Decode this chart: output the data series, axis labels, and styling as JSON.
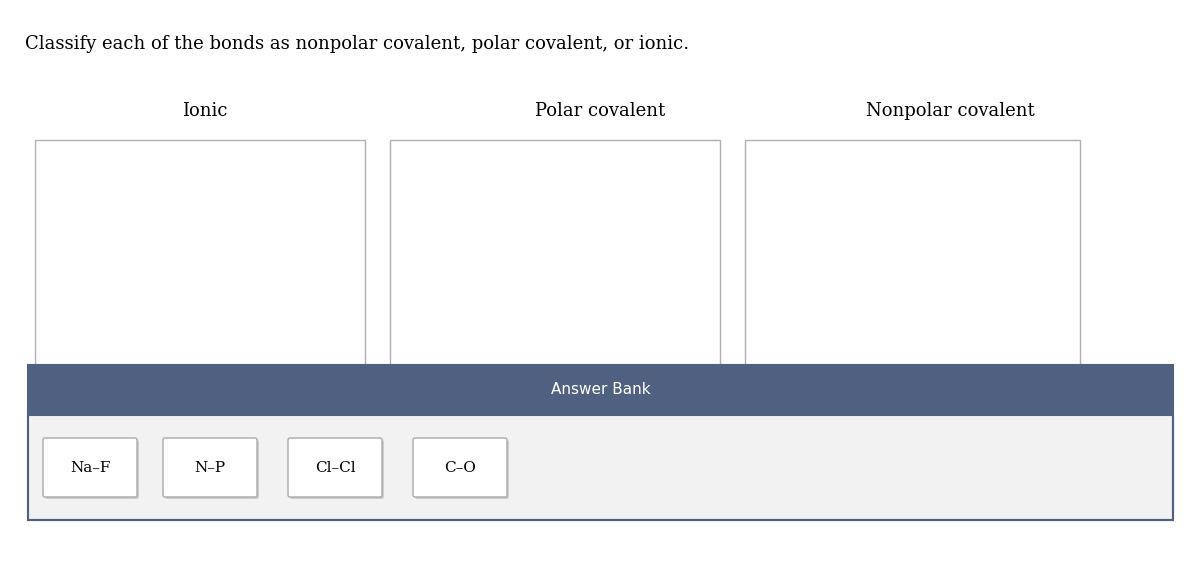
{
  "title": "Classify each of the bonds as nonpolar covalent, polar covalent, or ionic.",
  "title_fontsize": 13,
  "title_color": "#000000",
  "background_color": "#ffffff",
  "category_labels": [
    "Ionic",
    "Polar covalent",
    "Nonpolar covalent"
  ],
  "category_label_fontsize": 13,
  "box_edge_color": "#b0b0b0",
  "box_face_color": "#ffffff",
  "answer_bank_header": "Answer Bank",
  "answer_bank_header_color": "#ffffff",
  "answer_bank_header_fontsize": 11,
  "answer_bank_bg_color": "#4f6080",
  "answer_bank_body_bg": "#f2f2f2",
  "items": [
    "Na–F",
    "N–P",
    "Cl–Cl",
    "C–O"
  ],
  "item_fontsize": 11,
  "item_box_edge": "#aaaaaa",
  "item_box_face": "#ffffff"
}
